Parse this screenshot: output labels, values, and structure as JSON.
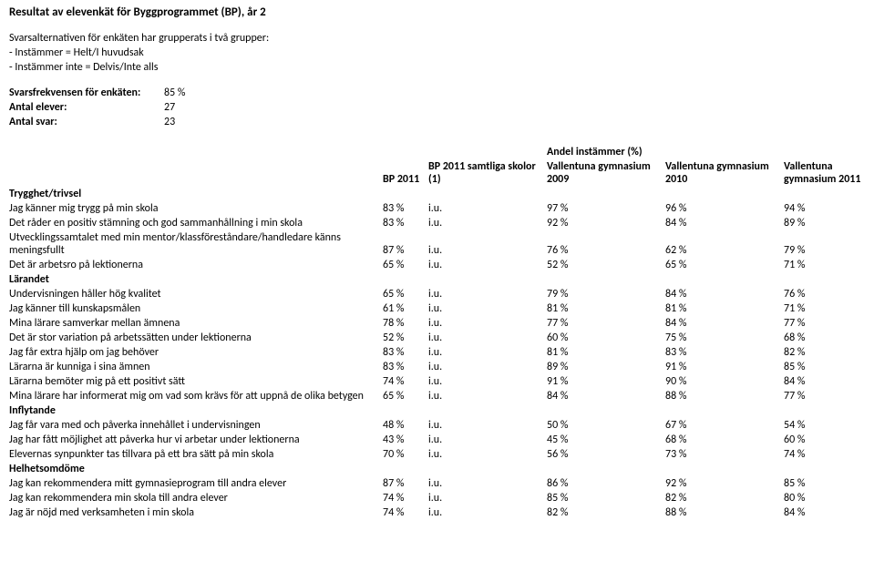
{
  "title": "Resultat av elevenkät för Byggprogrammet (BP), år 2",
  "intro": {
    "line1": "Svarsalternativen för enkäten har grupperats i två grupper:",
    "line2": "- Instämmer = Helt/I huvudsak",
    "line3": "- Instämmer inte = Delvis/Inte alls"
  },
  "meta": {
    "freq_label": "Svarsfrekvensen för enkäten:",
    "freq_value": "85 %",
    "elever_label": "Antal elever:",
    "elever_value": "27",
    "svar_label": "Antal svar:",
    "svar_value": "23"
  },
  "table": {
    "andel_header": "Andel instämmer (%)",
    "headers": {
      "bp": "BP 2011",
      "sam": "BP 2011 samtliga skolor (1)",
      "v09": "Vallentuna gymnasium 2009",
      "v10": "Vallentuna gymnasium 2010",
      "v11": "Vallentuna gymnasium 2011"
    },
    "rows": [
      {
        "type": "section",
        "label": "Trygghet/trivsel"
      },
      {
        "type": "data",
        "label": "Jag känner mig trygg på min skola",
        "bp": "83 %",
        "sam": "i.u.",
        "v09": "97 %",
        "v10": "96 %",
        "v11": "94 %"
      },
      {
        "type": "data",
        "label": "Det råder en positiv stämning och god sammanhållning i min skola",
        "bp": "83 %",
        "sam": "i.u.",
        "v09": "92 %",
        "v10": "84 %",
        "v11": "89 %"
      },
      {
        "type": "data",
        "label": "Utvecklingssamtalet med min mentor/klassföreståndare/handledare känns meningsfullt",
        "bp": "87 %",
        "sam": "i.u.",
        "v09": "76 %",
        "v10": "62 %",
        "v11": "79 %"
      },
      {
        "type": "data",
        "label": "Det är arbetsro på lektionerna",
        "bp": "65 %",
        "sam": "i.u.",
        "v09": "52 %",
        "v10": "65 %",
        "v11": "71 %"
      },
      {
        "type": "section",
        "label": "Lärandet"
      },
      {
        "type": "data",
        "label": "Undervisningen håller hög kvalitet",
        "bp": "65 %",
        "sam": "i.u.",
        "v09": "79 %",
        "v10": "84 %",
        "v11": "76 %"
      },
      {
        "type": "data",
        "label": "Jag känner till kunskapsmålen",
        "bp": "61 %",
        "sam": "i.u.",
        "v09": "81 %",
        "v10": "81 %",
        "v11": "71 %"
      },
      {
        "type": "data",
        "label": "Mina lärare samverkar mellan ämnena",
        "bp": "78 %",
        "sam": "i.u.",
        "v09": "77 %",
        "v10": "84 %",
        "v11": "77 %"
      },
      {
        "type": "data",
        "label": "Det är stor variation på arbetssätten under lektionerna",
        "bp": "52 %",
        "sam": "i.u.",
        "v09": "60 %",
        "v10": "75 %",
        "v11": "68 %"
      },
      {
        "type": "data",
        "label": "Jag får extra hjälp om jag behöver",
        "bp": "83 %",
        "sam": "i.u.",
        "v09": "81 %",
        "v10": "83 %",
        "v11": "82 %"
      },
      {
        "type": "data",
        "label": "Lärarna är kunniga i sina ämnen",
        "bp": "83 %",
        "sam": "i.u.",
        "v09": "89 %",
        "v10": "91 %",
        "v11": "85 %"
      },
      {
        "type": "data",
        "label": "Lärarna bemöter mig på ett positivt sätt",
        "bp": "74 %",
        "sam": "i.u.",
        "v09": "91 %",
        "v10": "90 %",
        "v11": "84 %"
      },
      {
        "type": "data",
        "label": "Mina lärare har informerat mig om vad som krävs för att uppnå de olika betygen",
        "bp": "65 %",
        "sam": "i.u.",
        "v09": "84 %",
        "v10": "88 %",
        "v11": "77 %"
      },
      {
        "type": "section",
        "label": "Inflytande"
      },
      {
        "type": "data",
        "label": "Jag får vara med och påverka innehållet i undervisningen",
        "bp": "48 %",
        "sam": "i.u.",
        "v09": "50 %",
        "v10": "67 %",
        "v11": "54 %"
      },
      {
        "type": "data",
        "label": "Jag har fått möjlighet att påverka hur vi arbetar under lektionerna",
        "bp": "43 %",
        "sam": "i.u.",
        "v09": "45 %",
        "v10": "68 %",
        "v11": "60 %"
      },
      {
        "type": "data",
        "label": "Elevernas synpunkter tas tillvara på ett bra sätt på min skola",
        "bp": "70 %",
        "sam": "i.u.",
        "v09": "56 %",
        "v10": "73 %",
        "v11": "74 %"
      },
      {
        "type": "section",
        "label": "Helhetsomdöme"
      },
      {
        "type": "data",
        "label": "Jag kan rekommendera mitt gymnasieprogram till andra elever",
        "bp": "87 %",
        "sam": "i.u.",
        "v09": "86 %",
        "v10": "92 %",
        "v11": "85 %"
      },
      {
        "type": "data",
        "label": "Jag kan rekommendera min skola till andra elever",
        "bp": "74 %",
        "sam": "i.u.",
        "v09": "85 %",
        "v10": "82 %",
        "v11": "80 %"
      },
      {
        "type": "data",
        "label": "Jag är nöjd med verksamheten i min skola",
        "bp": "74 %",
        "sam": "i.u.",
        "v09": "82 %",
        "v10": "88 %",
        "v11": "84 %"
      }
    ]
  }
}
